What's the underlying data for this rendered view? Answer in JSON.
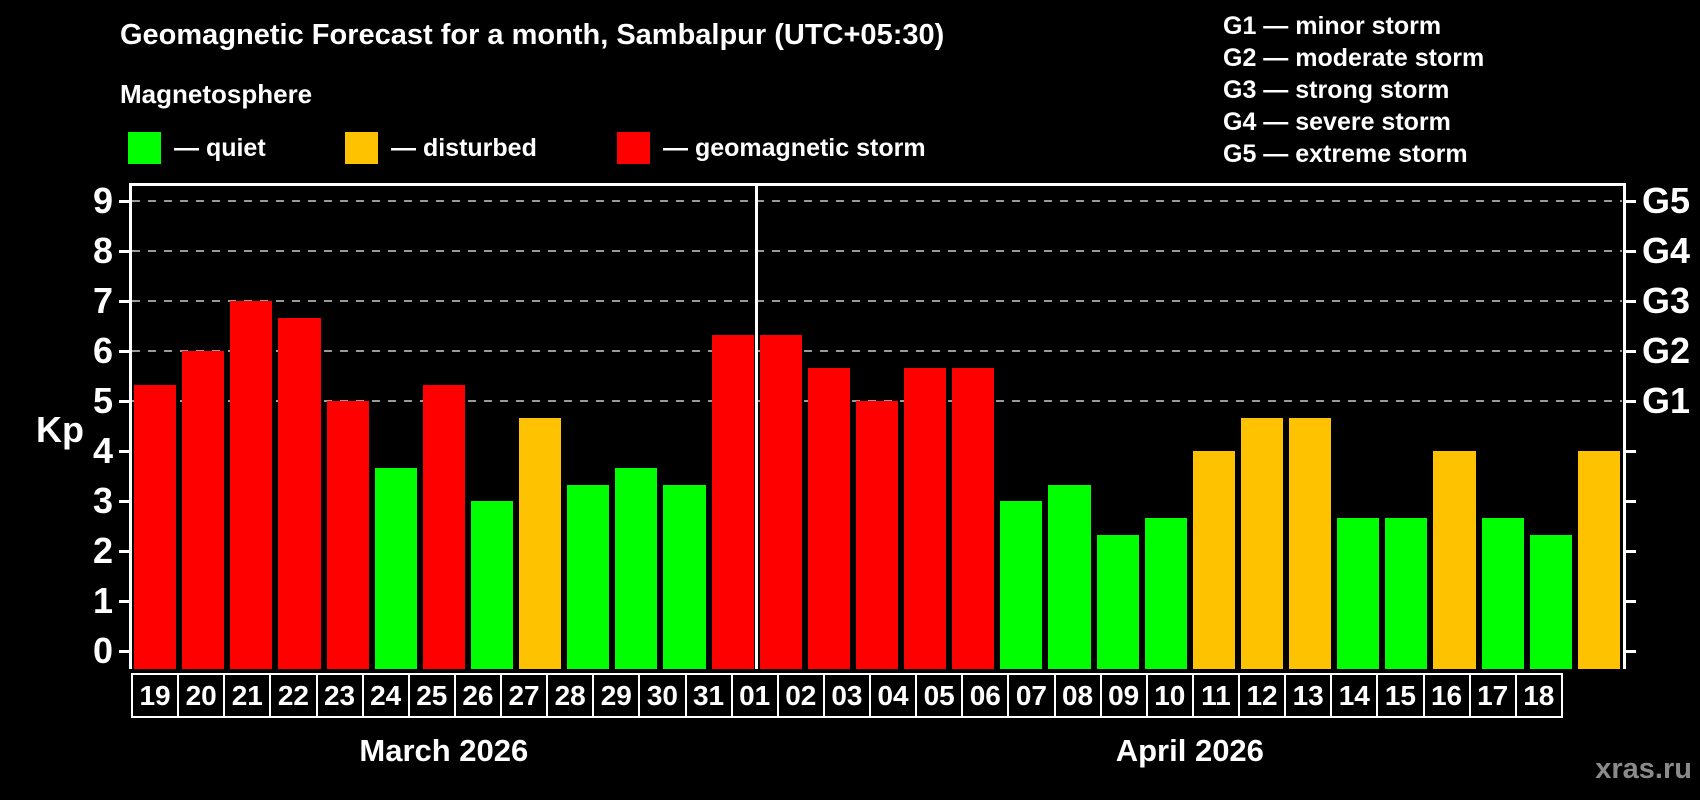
{
  "header": {
    "title": "Geomagnetic Forecast for a month, Sambalpur (UTC+05:30)",
    "subtitle": "Magnetosphere"
  },
  "legend": {
    "items": [
      {
        "key": "quiet",
        "label": "— quiet",
        "color": "#00ff00"
      },
      {
        "key": "disturbed",
        "label": "— disturbed",
        "color": "#ffc200"
      },
      {
        "key": "storm",
        "label": "— geomagnetic storm",
        "color": "#ff0000"
      }
    ]
  },
  "g_legend": [
    "G1 — minor storm",
    "G2 — moderate storm",
    "G3 — strong storm",
    "G4 — severe storm",
    "G5 — extreme storm"
  ],
  "watermark": "xras.ru",
  "chart_data": {
    "type": "bar",
    "ylabel": "Kp",
    "ylim": [
      -0.36,
      9.36
    ],
    "yticks": [
      0,
      1,
      2,
      3,
      4,
      5,
      6,
      7,
      8,
      9
    ],
    "gridlines": [
      5,
      6,
      7,
      8,
      9
    ],
    "grid_dashed": true,
    "g_labels": [
      {
        "kp": 5,
        "label": "G1"
      },
      {
        "kp": 6,
        "label": "G2"
      },
      {
        "kp": 7,
        "label": "G3"
      },
      {
        "kp": 8,
        "label": "G4"
      },
      {
        "kp": 9,
        "label": "G5"
      }
    ],
    "colors": {
      "quiet": "#00ff00",
      "disturbed": "#ffc200",
      "storm": "#ff0000"
    },
    "months": [
      {
        "label": "March 2026",
        "days": 13
      },
      {
        "label": "April 2026",
        "days": 18
      }
    ],
    "series": [
      {
        "date": "19",
        "month": "March 2026",
        "kp": 5.33,
        "status": "storm"
      },
      {
        "date": "20",
        "month": "March 2026",
        "kp": 6.0,
        "status": "storm"
      },
      {
        "date": "21",
        "month": "March 2026",
        "kp": 7.0,
        "status": "storm"
      },
      {
        "date": "22",
        "month": "March 2026",
        "kp": 6.67,
        "status": "storm"
      },
      {
        "date": "23",
        "month": "March 2026",
        "kp": 5.0,
        "status": "storm"
      },
      {
        "date": "24",
        "month": "March 2026",
        "kp": 3.67,
        "status": "quiet"
      },
      {
        "date": "25",
        "month": "March 2026",
        "kp": 5.33,
        "status": "storm"
      },
      {
        "date": "26",
        "month": "March 2026",
        "kp": 3.0,
        "status": "quiet"
      },
      {
        "date": "27",
        "month": "March 2026",
        "kp": 4.67,
        "status": "disturbed"
      },
      {
        "date": "28",
        "month": "March 2026",
        "kp": 3.33,
        "status": "quiet"
      },
      {
        "date": "29",
        "month": "March 2026",
        "kp": 3.67,
        "status": "quiet"
      },
      {
        "date": "30",
        "month": "March 2026",
        "kp": 3.33,
        "status": "quiet"
      },
      {
        "date": "31",
        "month": "March 2026",
        "kp": 6.33,
        "status": "storm"
      },
      {
        "date": "01",
        "month": "April 2026",
        "kp": 6.33,
        "status": "storm"
      },
      {
        "date": "02",
        "month": "April 2026",
        "kp": 5.67,
        "status": "storm"
      },
      {
        "date": "03",
        "month": "April 2026",
        "kp": 5.0,
        "status": "storm"
      },
      {
        "date": "04",
        "month": "April 2026",
        "kp": 5.67,
        "status": "storm"
      },
      {
        "date": "05",
        "month": "April 2026",
        "kp": 5.67,
        "status": "storm"
      },
      {
        "date": "06",
        "month": "April 2026",
        "kp": 3.0,
        "status": "quiet"
      },
      {
        "date": "07",
        "month": "April 2026",
        "kp": 3.33,
        "status": "quiet"
      },
      {
        "date": "08",
        "month": "April 2026",
        "kp": 2.33,
        "status": "quiet"
      },
      {
        "date": "09",
        "month": "April 2026",
        "kp": 2.67,
        "status": "quiet"
      },
      {
        "date": "10",
        "month": "April 2026",
        "kp": 4.0,
        "status": "disturbed"
      },
      {
        "date": "11",
        "month": "April 2026",
        "kp": 4.67,
        "status": "disturbed"
      },
      {
        "date": "12",
        "month": "April 2026",
        "kp": 4.67,
        "status": "disturbed"
      },
      {
        "date": "13",
        "month": "April 2026",
        "kp": 2.67,
        "status": "quiet"
      },
      {
        "date": "14",
        "month": "April 2026",
        "kp": 2.67,
        "status": "quiet"
      },
      {
        "date": "15",
        "month": "April 2026",
        "kp": 4.0,
        "status": "disturbed"
      },
      {
        "date": "16",
        "month": "April 2026",
        "kp": 2.67,
        "status": "quiet"
      },
      {
        "date": "17",
        "month": "April 2026",
        "kp": 2.33,
        "status": "quiet"
      },
      {
        "date": "18",
        "month": "April 2026",
        "kp": 4.0,
        "status": "disturbed"
      }
    ]
  }
}
